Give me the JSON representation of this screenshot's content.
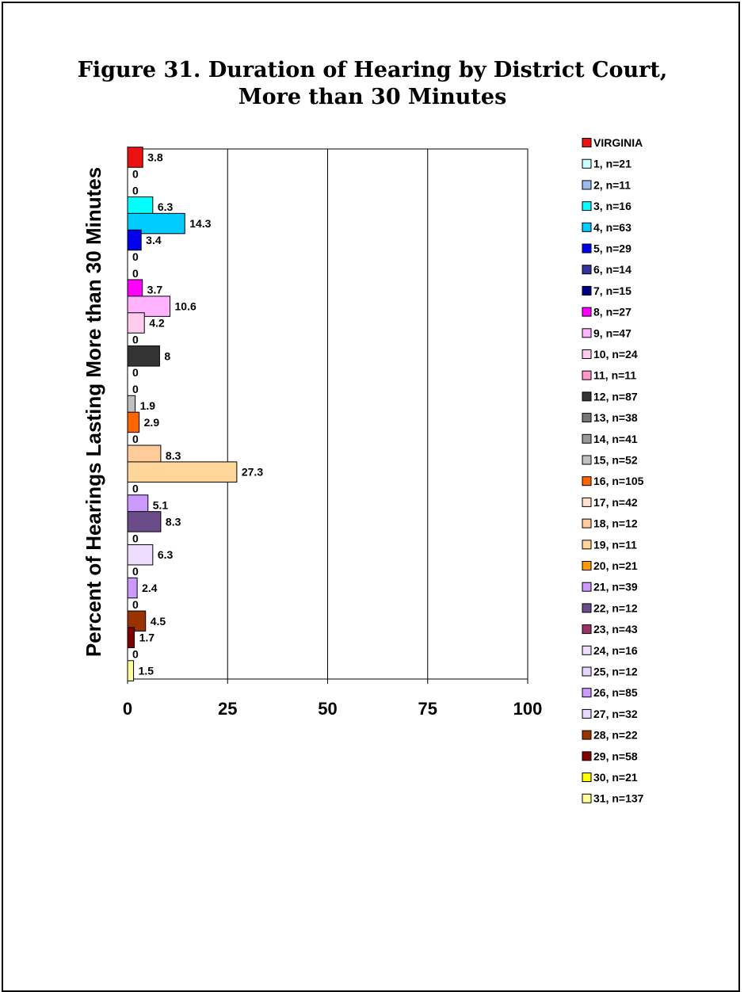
{
  "chart_data": {
    "type": "bar",
    "orientation": "horizontal",
    "title_line1": "Figure 31. Duration of Hearing by District Court,",
    "title_line2": "More than 30 Minutes",
    "ylabel": "Percent of Hearings Lasting More than 30 Minutes",
    "xlim": [
      0,
      100
    ],
    "xticks": [
      "0",
      "25",
      "50",
      "75",
      "100"
    ],
    "xtick_values": [
      0,
      25,
      50,
      75,
      100
    ],
    "grid": true,
    "legend_position": "right",
    "categories": [
      "VIRGINIA",
      "1, n=21",
      "2, n=11",
      "3, n=16",
      "4, n=63",
      "5, n=29",
      "6, n=14",
      "7, n=15",
      "8, n=27",
      "9, n=47",
      "10, n=24",
      "11, n=11",
      "12, n=87",
      "13, n=38",
      "14, n=41",
      "15, n=52",
      "16, n=105",
      "17, n=42",
      "18, n=12",
      "19, n=11",
      "20, n=21",
      "21, n=39",
      "22, n=12",
      "23, n=43",
      "24, n=16",
      "25, n=12",
      "26, n=85",
      "27, n=32",
      "28, n=22",
      "29, n=58",
      "30, n=21",
      "31, n=137"
    ],
    "values": [
      3.8,
      0,
      0,
      6.3,
      14.3,
      3.4,
      0,
      0,
      3.7,
      10.6,
      4.2,
      0,
      8,
      0,
      0,
      1.9,
      2.9,
      0,
      8.3,
      27.3,
      0,
      5.1,
      8.3,
      0,
      6.3,
      0,
      2.4,
      0,
      4.5,
      1.7,
      0,
      1.5
    ],
    "value_labels": [
      "3.8",
      "0",
      "0",
      "6.3",
      "14.3",
      "3.4",
      "0",
      "0",
      "3.7",
      "10.6",
      "4.2",
      "0",
      "8",
      "0",
      "0",
      "1.9",
      "2.9",
      "0",
      "8.3",
      "27.3",
      "0",
      "5.1",
      "8.3",
      "0",
      "6.3",
      "0",
      "2.4",
      "0",
      "4.5",
      "1.7",
      "0",
      "1.5"
    ],
    "colors": [
      "#ee1111",
      "#ccffff",
      "#99bbee",
      "#00ffff",
      "#00ccff",
      "#0000ee",
      "#333399",
      "#000080",
      "#ff00ff",
      "#ffb3ff",
      "#ffccee",
      "#ff99cc",
      "#333333",
      "#777777",
      "#999999",
      "#c0c0c0",
      "#ff6600",
      "#ffe0cc",
      "#ffcc99",
      "#ffd699",
      "#ff9900",
      "#cc99ff",
      "#6a4c8a",
      "#993366",
      "#eeddff",
      "#e6d6ff",
      "#cc99ff",
      "#e8d8ff",
      "#993300",
      "#800000",
      "#ffff00",
      "#ffff99"
    ]
  }
}
